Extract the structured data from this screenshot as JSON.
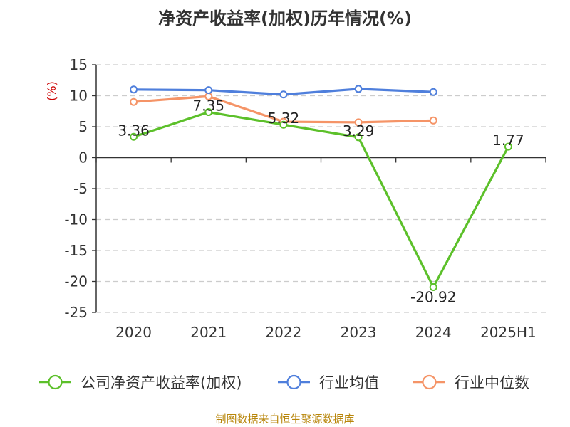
{
  "chart_data": {
    "type": "line",
    "title": "净资产收益率(加权)历年情况(%)",
    "ylabel": "(%)",
    "xlabel": "",
    "categories": [
      "2020",
      "2021",
      "2022",
      "2023",
      "2024",
      "2025H1"
    ],
    "yticks": [
      15,
      10,
      5,
      0,
      -5,
      -10,
      -15,
      -20,
      -25
    ],
    "ylim": [
      -25,
      15
    ],
    "grid": true,
    "legend_position": "bottom",
    "series": [
      {
        "name": "公司净资产收益率(加权)",
        "color": "#5cc02a",
        "values": [
          3.36,
          7.35,
          5.32,
          3.29,
          -20.92,
          1.77
        ],
        "labels": [
          "3.36",
          "7.35",
          "5.32",
          "3.29",
          "-20.92",
          "1.77"
        ]
      },
      {
        "name": "行业均值",
        "color": "#4f7fdc",
        "values": [
          11.0,
          10.9,
          10.2,
          11.1,
          10.6,
          null
        ]
      },
      {
        "name": "行业中位数",
        "color": "#f59467",
        "values": [
          9.0,
          9.9,
          5.8,
          5.7,
          6.0,
          null
        ]
      }
    ]
  },
  "source_note": "制图数据来自恒生聚源数据库"
}
